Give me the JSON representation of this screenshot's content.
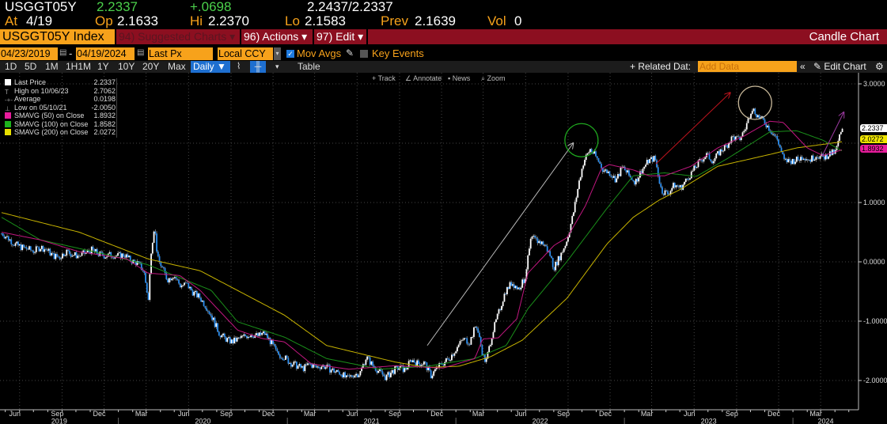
{
  "quote": {
    "ticker": "USGGT05Y",
    "last": "2.2337",
    "change": "+.0698",
    "bid_ask": "2.2437/2.2337",
    "at_label": "At",
    "at_value": "4/19",
    "op_label": "Op",
    "op_value": "2.1633",
    "hi_label": "Hi",
    "hi_value": "2.2370",
    "lo_label": "Lo",
    "lo_value": "2.1583",
    "prev_label": "Prev",
    "prev_value": "2.1639",
    "vol_label": "Vol",
    "vol_value": "0"
  },
  "menu": {
    "security": "USGGT05Y Index",
    "suggested": "94) Suggested Charts ▾",
    "actions": "96) Actions ▾",
    "edit": "97) Edit ▾",
    "title": "Candle Chart"
  },
  "controls": {
    "start_date": "04/23/2019",
    "end_date": "04/19/2024",
    "dash": "-",
    "field": "Last Px",
    "currency": "Local CCY",
    "mov_avgs": "Mov Avgs",
    "mov_avgs_checked": true,
    "key_events": "Key Events",
    "key_events_checked": false
  },
  "toolbar": {
    "periods": [
      "1D",
      "5D",
      "1M",
      "1H1M",
      "1Y",
      "10Y",
      "20Y",
      "Max"
    ],
    "frequency": "Daily ▼",
    "table": "Table",
    "related": "+ Related Dat:",
    "add_data_placeholder": "Add Data",
    "edit_chart": "✎ Edit Chart"
  },
  "mini_toolbar": [
    "Track",
    "Annotate",
    "News",
    "Zoom"
  ],
  "legend": [
    {
      "label": "Last Price",
      "value": "2.2337",
      "color": "#ffffff"
    },
    {
      "label": "High on 10/06/23",
      "value": "2.7062",
      "color": ""
    },
    {
      "label": "Average",
      "value": "0.0198",
      "color": ""
    },
    {
      "label": "Low on 05/10/21",
      "value": "-2.0050",
      "color": ""
    },
    {
      "label": "SMAVG (50)  on Close",
      "value": "1.8932",
      "color": "#e81c9c"
    },
    {
      "label": "SMAVG (100)  on Close",
      "value": "1.8582",
      "color": "#1db31d"
    },
    {
      "label": "SMAVG (200)  on Close",
      "value": "2.0272",
      "color": "#e8e000"
    }
  ],
  "price_tags": [
    {
      "value": "2.2337",
      "color": "#ffffff"
    },
    {
      "value": "2.0272",
      "color": "#f0e600"
    },
    {
      "value": "1.8932",
      "color": "#e81c9c"
    }
  ],
  "chart_data": {
    "type": "candlestick",
    "ylim": [
      -2.6,
      3.2
    ],
    "yticks": [
      "3.0000",
      "1.0000",
      "0.0000",
      "-1.0000",
      "-2.0000"
    ],
    "yticks_values": [
      3,
      1,
      0,
      -1,
      -2
    ],
    "xlim": [
      "2019-04-23",
      "2024-04-19"
    ],
    "month_labels": [
      "Jun",
      "Sep",
      "Dec",
      "Mar"
    ],
    "year_labels": [
      "2019",
      "2020",
      "2021",
      "2022",
      "2023",
      "2024"
    ],
    "grid": true,
    "colors": {
      "up": "#ffffff",
      "down": "#2b8ef0",
      "sma50": "#c0177f",
      "sma100": "#1a8f1a",
      "sma200": "#c8b400"
    },
    "close": [
      [
        "2019-04-23",
        0.48
      ],
      [
        "2019-05-07",
        0.4
      ],
      [
        "2019-05-21",
        0.3
      ],
      [
        "2019-06-04",
        0.25
      ],
      [
        "2019-06-18",
        0.22
      ],
      [
        "2019-07-02",
        0.18
      ],
      [
        "2019-07-16",
        0.25
      ],
      [
        "2019-07-30",
        0.2
      ],
      [
        "2019-08-13",
        0.1
      ],
      [
        "2019-08-27",
        0.08
      ],
      [
        "2019-09-10",
        0.18
      ],
      [
        "2019-09-24",
        0.12
      ],
      [
        "2019-10-08",
        0.1
      ],
      [
        "2019-10-22",
        0.15
      ],
      [
        "2019-11-05",
        0.2
      ],
      [
        "2019-11-19",
        0.13
      ],
      [
        "2019-12-03",
        0.1
      ],
      [
        "2019-12-17",
        0.12
      ],
      [
        "2019-12-31",
        0.1
      ],
      [
        "2020-01-14",
        0.12
      ],
      [
        "2020-01-28",
        0.02
      ],
      [
        "2020-02-11",
        -0.02
      ],
      [
        "2020-02-25",
        -0.15
      ],
      [
        "2020-03-06",
        -0.65
      ],
      [
        "2020-03-12",
        0.2
      ],
      [
        "2020-03-19",
        0.62
      ],
      [
        "2020-03-26",
        0.05
      ],
      [
        "2020-04-02",
        -0.05
      ],
      [
        "2020-04-16",
        -0.3
      ],
      [
        "2020-04-30",
        -0.22
      ],
      [
        "2020-05-14",
        -0.4
      ],
      [
        "2020-05-28",
        -0.38
      ],
      [
        "2020-06-11",
        -0.52
      ],
      [
        "2020-06-25",
        -0.6
      ],
      [
        "2020-07-09",
        -0.75
      ],
      [
        "2020-07-23",
        -0.95
      ],
      [
        "2020-08-06",
        -1.2
      ],
      [
        "2020-08-20",
        -1.3
      ],
      [
        "2020-09-03",
        -1.35
      ],
      [
        "2020-09-17",
        -1.3
      ],
      [
        "2020-10-01",
        -1.25
      ],
      [
        "2020-10-15",
        -1.22
      ],
      [
        "2020-10-29",
        -1.25
      ],
      [
        "2020-11-12",
        -1.2
      ],
      [
        "2020-11-26",
        -1.35
      ],
      [
        "2020-12-10",
        -1.55
      ],
      [
        "2020-12-24",
        -1.6
      ],
      [
        "2021-01-07",
        -1.7
      ],
      [
        "2021-01-21",
        -1.75
      ],
      [
        "2021-02-04",
        -1.8
      ],
      [
        "2021-02-18",
        -1.72
      ],
      [
        "2021-03-04",
        -1.78
      ],
      [
        "2021-03-18",
        -1.75
      ],
      [
        "2021-04-01",
        -1.8
      ],
      [
        "2021-04-15",
        -1.85
      ],
      [
        "2021-04-29",
        -1.88
      ],
      [
        "2021-05-10",
        -1.98
      ],
      [
        "2021-05-24",
        -1.9
      ],
      [
        "2021-06-07",
        -1.88
      ],
      [
        "2021-06-21",
        -1.6
      ],
      [
        "2021-07-05",
        -1.75
      ],
      [
        "2021-07-19",
        -1.85
      ],
      [
        "2021-08-02",
        -1.95
      ],
      [
        "2021-08-16",
        -1.85
      ],
      [
        "2021-08-30",
        -1.78
      ],
      [
        "2021-09-13",
        -1.82
      ],
      [
        "2021-09-27",
        -1.65
      ],
      [
        "2021-10-11",
        -1.72
      ],
      [
        "2021-10-25",
        -1.7
      ],
      [
        "2021-11-08",
        -1.92
      ],
      [
        "2021-11-22",
        -1.78
      ],
      [
        "2021-12-06",
        -1.7
      ],
      [
        "2021-12-20",
        -1.6
      ],
      [
        "2022-01-03",
        -1.45
      ],
      [
        "2022-01-17",
        -1.3
      ],
      [
        "2022-01-31",
        -1.35
      ],
      [
        "2022-02-14",
        -1.05
      ],
      [
        "2022-02-28",
        -1.55
      ],
      [
        "2022-03-07",
        -1.7
      ],
      [
        "2022-03-21",
        -1.2
      ],
      [
        "2022-04-04",
        -0.85
      ],
      [
        "2022-04-18",
        -0.5
      ],
      [
        "2022-05-02",
        -0.35
      ],
      [
        "2022-05-16",
        -0.45
      ],
      [
        "2022-05-30",
        -0.3
      ],
      [
        "2022-06-13",
        0.4
      ],
      [
        "2022-06-27",
        0.35
      ],
      [
        "2022-07-11",
        0.3
      ],
      [
        "2022-07-25",
        0.1
      ],
      [
        "2022-08-01",
        -0.1
      ],
      [
        "2022-08-15",
        0.1
      ],
      [
        "2022-08-29",
        0.35
      ],
      [
        "2022-09-12",
        0.8
      ],
      [
        "2022-09-26",
        1.4
      ],
      [
        "2022-10-05",
        1.7
      ],
      [
        "2022-10-19",
        1.9
      ],
      [
        "2022-11-02",
        1.75
      ],
      [
        "2022-11-16",
        1.55
      ],
      [
        "2022-11-30",
        1.5
      ],
      [
        "2022-12-14",
        1.38
      ],
      [
        "2022-12-28",
        1.6
      ],
      [
        "2023-01-11",
        1.45
      ],
      [
        "2023-01-25",
        1.35
      ],
      [
        "2023-02-08",
        1.55
      ],
      [
        "2023-02-22",
        1.7
      ],
      [
        "2023-03-08",
        1.75
      ],
      [
        "2023-03-22",
        1.2
      ],
      [
        "2023-04-05",
        1.15
      ],
      [
        "2023-04-19",
        1.3
      ],
      [
        "2023-05-03",
        1.25
      ],
      [
        "2023-05-17",
        1.4
      ],
      [
        "2023-05-31",
        1.55
      ],
      [
        "2023-06-14",
        1.7
      ],
      [
        "2023-06-28",
        1.8
      ],
      [
        "2023-07-12",
        1.7
      ],
      [
        "2023-07-26",
        1.85
      ],
      [
        "2023-08-09",
        1.95
      ],
      [
        "2023-08-23",
        2.1
      ],
      [
        "2023-09-06",
        2.05
      ],
      [
        "2023-09-20",
        2.25
      ],
      [
        "2023-10-04",
        2.6
      ],
      [
        "2023-10-18",
        2.45
      ],
      [
        "2023-11-01",
        2.35
      ],
      [
        "2023-11-15",
        2.2
      ],
      [
        "2023-11-29",
        2.05
      ],
      [
        "2023-12-13",
        1.7
      ],
      [
        "2023-12-27",
        1.7
      ],
      [
        "2024-01-10",
        1.72
      ],
      [
        "2024-01-24",
        1.78
      ],
      [
        "2024-02-07",
        1.72
      ],
      [
        "2024-02-21",
        1.8
      ],
      [
        "2024-03-06",
        1.75
      ],
      [
        "2024-03-20",
        1.82
      ],
      [
        "2024-04-03",
        1.85
      ],
      [
        "2024-04-10",
        2.1
      ],
      [
        "2024-04-19",
        2.2337
      ]
    ],
    "sma50": [
      [
        "2019-04-23",
        0.5
      ],
      [
        "2019-07-16",
        0.37
      ],
      [
        "2019-10-08",
        0.17
      ],
      [
        "2020-01-19",
        0.05
      ],
      [
        "2020-03-05",
        -0.19
      ],
      [
        "2020-05-13",
        -0.23
      ],
      [
        "2020-06-26",
        -0.48
      ],
      [
        "2020-09-15",
        -1.15
      ],
      [
        "2020-11-06",
        -1.29
      ],
      [
        "2020-12-26",
        -1.35
      ],
      [
        "2021-02-22",
        -1.72
      ],
      [
        "2021-05-14",
        -1.81
      ],
      [
        "2021-08-23",
        -1.75
      ],
      [
        "2021-12-04",
        -1.79
      ],
      [
        "2022-02-11",
        -1.63
      ],
      [
        "2022-02-28",
        -1.3
      ],
      [
        "2022-04-03",
        -1.28
      ],
      [
        "2022-05-13",
        -0.96
      ],
      [
        "2022-06-06",
        -0.19
      ],
      [
        "2022-08-02",
        0.28
      ],
      [
        "2022-08-30",
        0.41
      ],
      [
        "2022-10-09",
        0.95
      ],
      [
        "2022-11-12",
        1.57
      ],
      [
        "2022-11-29",
        1.64
      ],
      [
        "2023-01-20",
        1.55
      ],
      [
        "2023-02-23",
        1.45
      ],
      [
        "2023-03-29",
        1.45
      ],
      [
        "2023-05-25",
        1.61
      ],
      [
        "2023-07-22",
        1.92
      ],
      [
        "2023-09-17",
        2.12
      ],
      [
        "2023-11-12",
        2.37
      ],
      [
        "2023-12-11",
        2.35
      ],
      [
        "2024-02-01",
        1.92
      ],
      [
        "2024-03-06",
        1.79
      ],
      [
        "2024-04-19",
        1.8932
      ]
    ],
    "sma100": [
      [
        "2019-04-23",
        0.75
      ],
      [
        "2019-07-16",
        0.37
      ],
      [
        "2019-12-03",
        0.13
      ],
      [
        "2020-03-05",
        -0.05
      ],
      [
        "2020-07-20",
        -0.48
      ],
      [
        "2020-09-15",
        -1.01
      ],
      [
        "2020-12-26",
        -1.27
      ],
      [
        "2021-03-27",
        -1.63
      ],
      [
        "2021-07-20",
        -1.81
      ],
      [
        "2021-10-31",
        -1.76
      ],
      [
        "2022-02-11",
        -1.63
      ],
      [
        "2022-04-20",
        -1.41
      ],
      [
        "2022-06-06",
        -0.79
      ],
      [
        "2022-08-30",
        0.01
      ],
      [
        "2022-11-24",
        0.9
      ],
      [
        "2023-01-20",
        1.45
      ],
      [
        "2023-03-29",
        1.5
      ],
      [
        "2023-06-06",
        1.44
      ],
      [
        "2023-08-14",
        1.75
      ],
      [
        "2023-11-12",
        2.19
      ],
      [
        "2024-01-09",
        2.21
      ],
      [
        "2024-03-06",
        2.05
      ],
      [
        "2024-04-19",
        1.8582
      ]
    ],
    "sma200": [
      [
        "2019-04-23",
        0.83
      ],
      [
        "2019-10-08",
        0.5
      ],
      [
        "2020-03-05",
        0.05
      ],
      [
        "2020-06-26",
        -0.15
      ],
      [
        "2020-12-26",
        -0.9
      ],
      [
        "2021-03-27",
        -1.41
      ],
      [
        "2021-08-23",
        -1.69
      ],
      [
        "2021-10-31",
        -1.78
      ],
      [
        "2022-01-07",
        -1.76
      ],
      [
        "2022-03-17",
        -1.6
      ],
      [
        "2022-05-25",
        -1.32
      ],
      [
        "2022-08-30",
        -0.61
      ],
      [
        "2022-11-24",
        0.3
      ],
      [
        "2023-01-20",
        0.75
      ],
      [
        "2023-03-17",
        1.04
      ],
      [
        "2023-05-02",
        1.22
      ],
      [
        "2023-07-22",
        1.61
      ],
      [
        "2023-11-12",
        1.81
      ],
      [
        "2024-01-09",
        1.92
      ],
      [
        "2024-04-19",
        2.0272
      ]
    ],
    "annotations": [
      {
        "type": "arrow",
        "from": [
          "2021-10-31",
          -1.41
        ],
        "to": [
          "2022-09-12",
          2.0
        ],
        "color": "#bbbbbb"
      },
      {
        "type": "circle",
        "at": [
          "2022-09-30",
          2.05
        ],
        "color": "#1fa81f"
      },
      {
        "type": "arrow",
        "from": [
          "2023-03-10",
          1.65
        ],
        "to": [
          "2023-08-18",
          2.85
        ],
        "color": "#c0141e"
      },
      {
        "type": "circle",
        "at": [
          "2023-10-11",
          2.68
        ],
        "color": "#c9b99a"
      },
      {
        "type": "arrow",
        "from": [
          "2024-03-06",
          1.81
        ],
        "to": [
          "2024-04-20",
          2.52
        ],
        "color": "#9b3aa0"
      }
    ]
  }
}
